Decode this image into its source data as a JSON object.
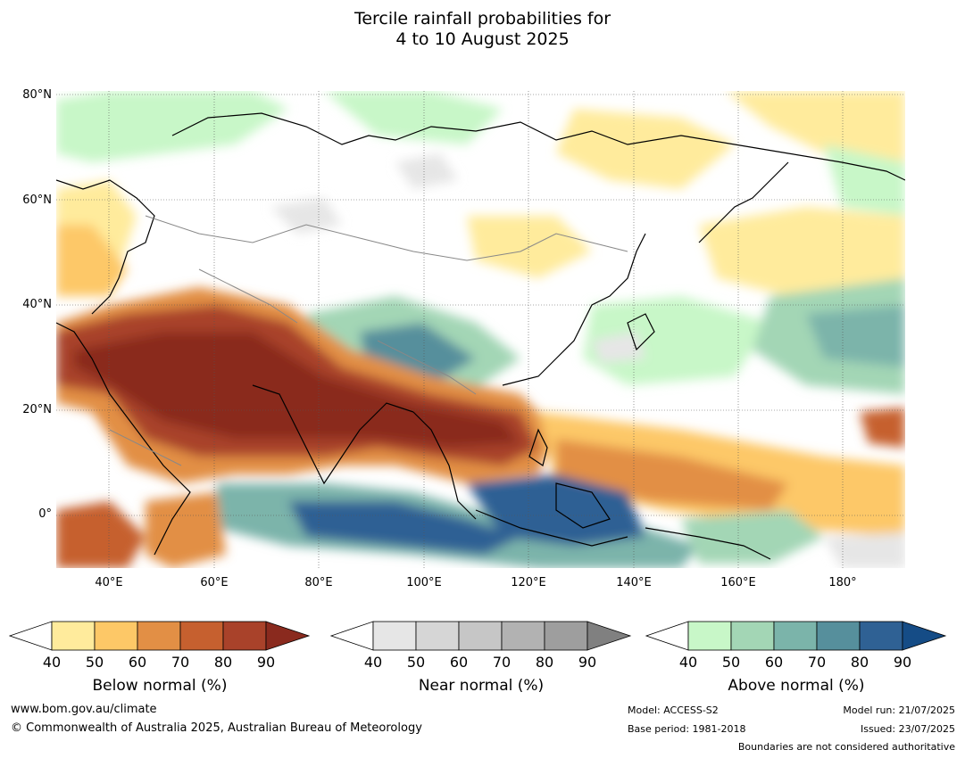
{
  "title": {
    "line1": "Tercile rainfall probabilities for",
    "line2": "4 to 10 August 2025"
  },
  "map": {
    "lat_labels": [
      "80°N",
      "60°N",
      "40°N",
      "20°N",
      "0°"
    ],
    "lon_labels": [
      "40°E",
      "60°E",
      "80°E",
      "100°E",
      "120°E",
      "140°E",
      "160°E",
      "180°"
    ]
  },
  "colorbars": {
    "below": {
      "title": "Below normal (%)",
      "ticks": [
        "40",
        "50",
        "60",
        "70",
        "80",
        "90"
      ],
      "colors": [
        "#ffeb9c",
        "#fdc867",
        "#e28f45",
        "#c6602f",
        "#a9422a",
        "#8a2a1e"
      ]
    },
    "near": {
      "title": "Near normal (%)",
      "ticks": [
        "40",
        "50",
        "60",
        "70",
        "80",
        "90"
      ],
      "colors": [
        "#e6e6e6",
        "#d6d6d6",
        "#c6c6c6",
        "#b2b2b2",
        "#9e9e9e",
        "#808080"
      ]
    },
    "above": {
      "title": "Above normal (%)",
      "ticks": [
        "40",
        "50",
        "60",
        "70",
        "80",
        "90"
      ],
      "colors": [
        "#c8f7c8",
        "#a3d6b5",
        "#7bb4aa",
        "#568f9c",
        "#2f6194",
        "#154c86"
      ]
    }
  },
  "footer": {
    "website": "www.bom.gov.au/climate",
    "copyright": "© Commonwealth of Australia 2025, Australian Bureau of Meteorology",
    "model": "Model: ACCESS-S2",
    "base_period": "Base period: 1981-2018",
    "model_run": "Model run: 21/07/2025",
    "issued": "Issued: 23/07/2025",
    "disclaimer": "Boundaries are not considered authoritative"
  }
}
